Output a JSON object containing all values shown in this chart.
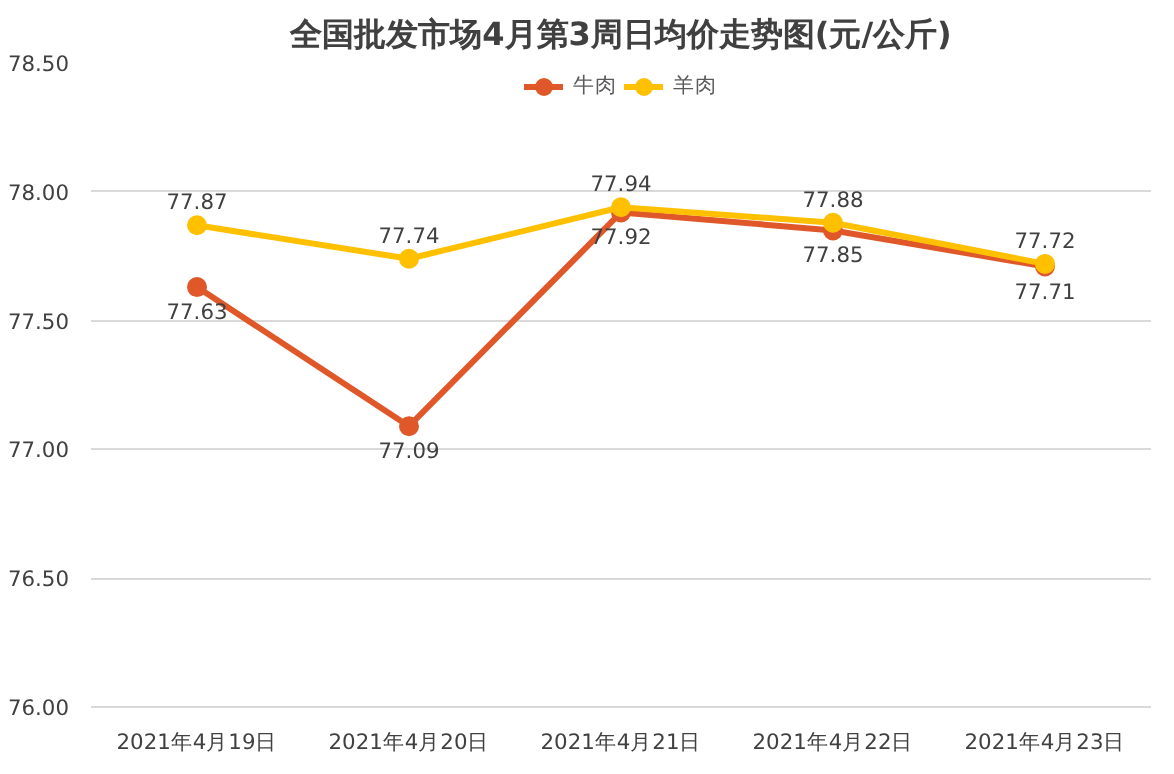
{
  "chart_data": {
    "type": "line",
    "title": "全国批发市场4月第3周日均价走势图(元/公斤)",
    "categories": [
      "2021年4月19日",
      "2021年4月20日",
      "2021年4月21日",
      "2021年4月22日",
      "2021年4月23日"
    ],
    "series": [
      {
        "name": "牛肉",
        "color": "#e0582a",
        "values": [
          77.63,
          77.09,
          77.92,
          77.85,
          77.71
        ]
      },
      {
        "name": "羊肉",
        "color": "#ffc000",
        "values": [
          77.87,
          77.74,
          77.94,
          77.88,
          77.72
        ]
      }
    ],
    "ylim": [
      76.0,
      78.5
    ],
    "yticks": [
      {
        "value": 76.0,
        "label": "76.00"
      },
      {
        "value": 76.5,
        "label": "76.50"
      },
      {
        "value": 77.0,
        "label": "77.00"
      },
      {
        "value": 77.5,
        "label": "77.50"
      },
      {
        "value": 78.0,
        "label": "78.00"
      },
      {
        "value": 78.5,
        "label": "78.50"
      }
    ],
    "grid": "y",
    "legend": "top",
    "marker": "circle",
    "line_style": "solid",
    "data_labels": true
  }
}
